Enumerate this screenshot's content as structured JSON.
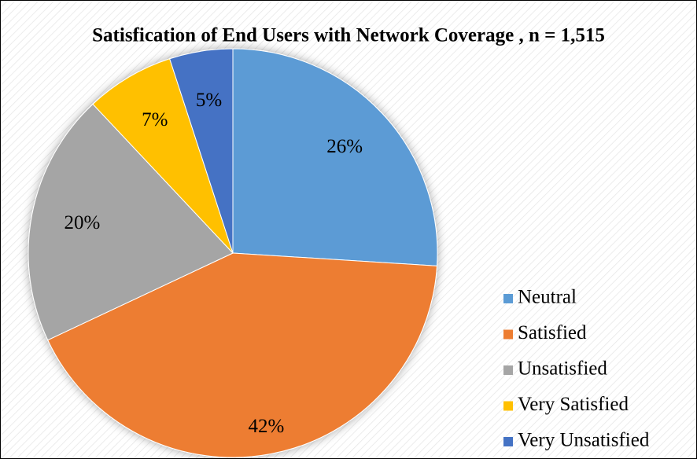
{
  "chart_data": {
    "type": "pie",
    "title": "Satisfication of End Users with Network Coverage , n = 1,515",
    "categories": [
      "Neutral",
      "Satisfied",
      "Unsatisfied",
      "Very Satisfied",
      "Very Unsatisfied"
    ],
    "values": [
      26,
      42,
      20,
      7,
      5
    ],
    "value_labels": [
      "26%",
      "42%",
      "20%",
      "7%",
      "5%"
    ],
    "colors": [
      "#5b9bd5",
      "#ed7d31",
      "#a5a5a5",
      "#ffc000",
      "#4472c4"
    ],
    "legend": "right"
  }
}
